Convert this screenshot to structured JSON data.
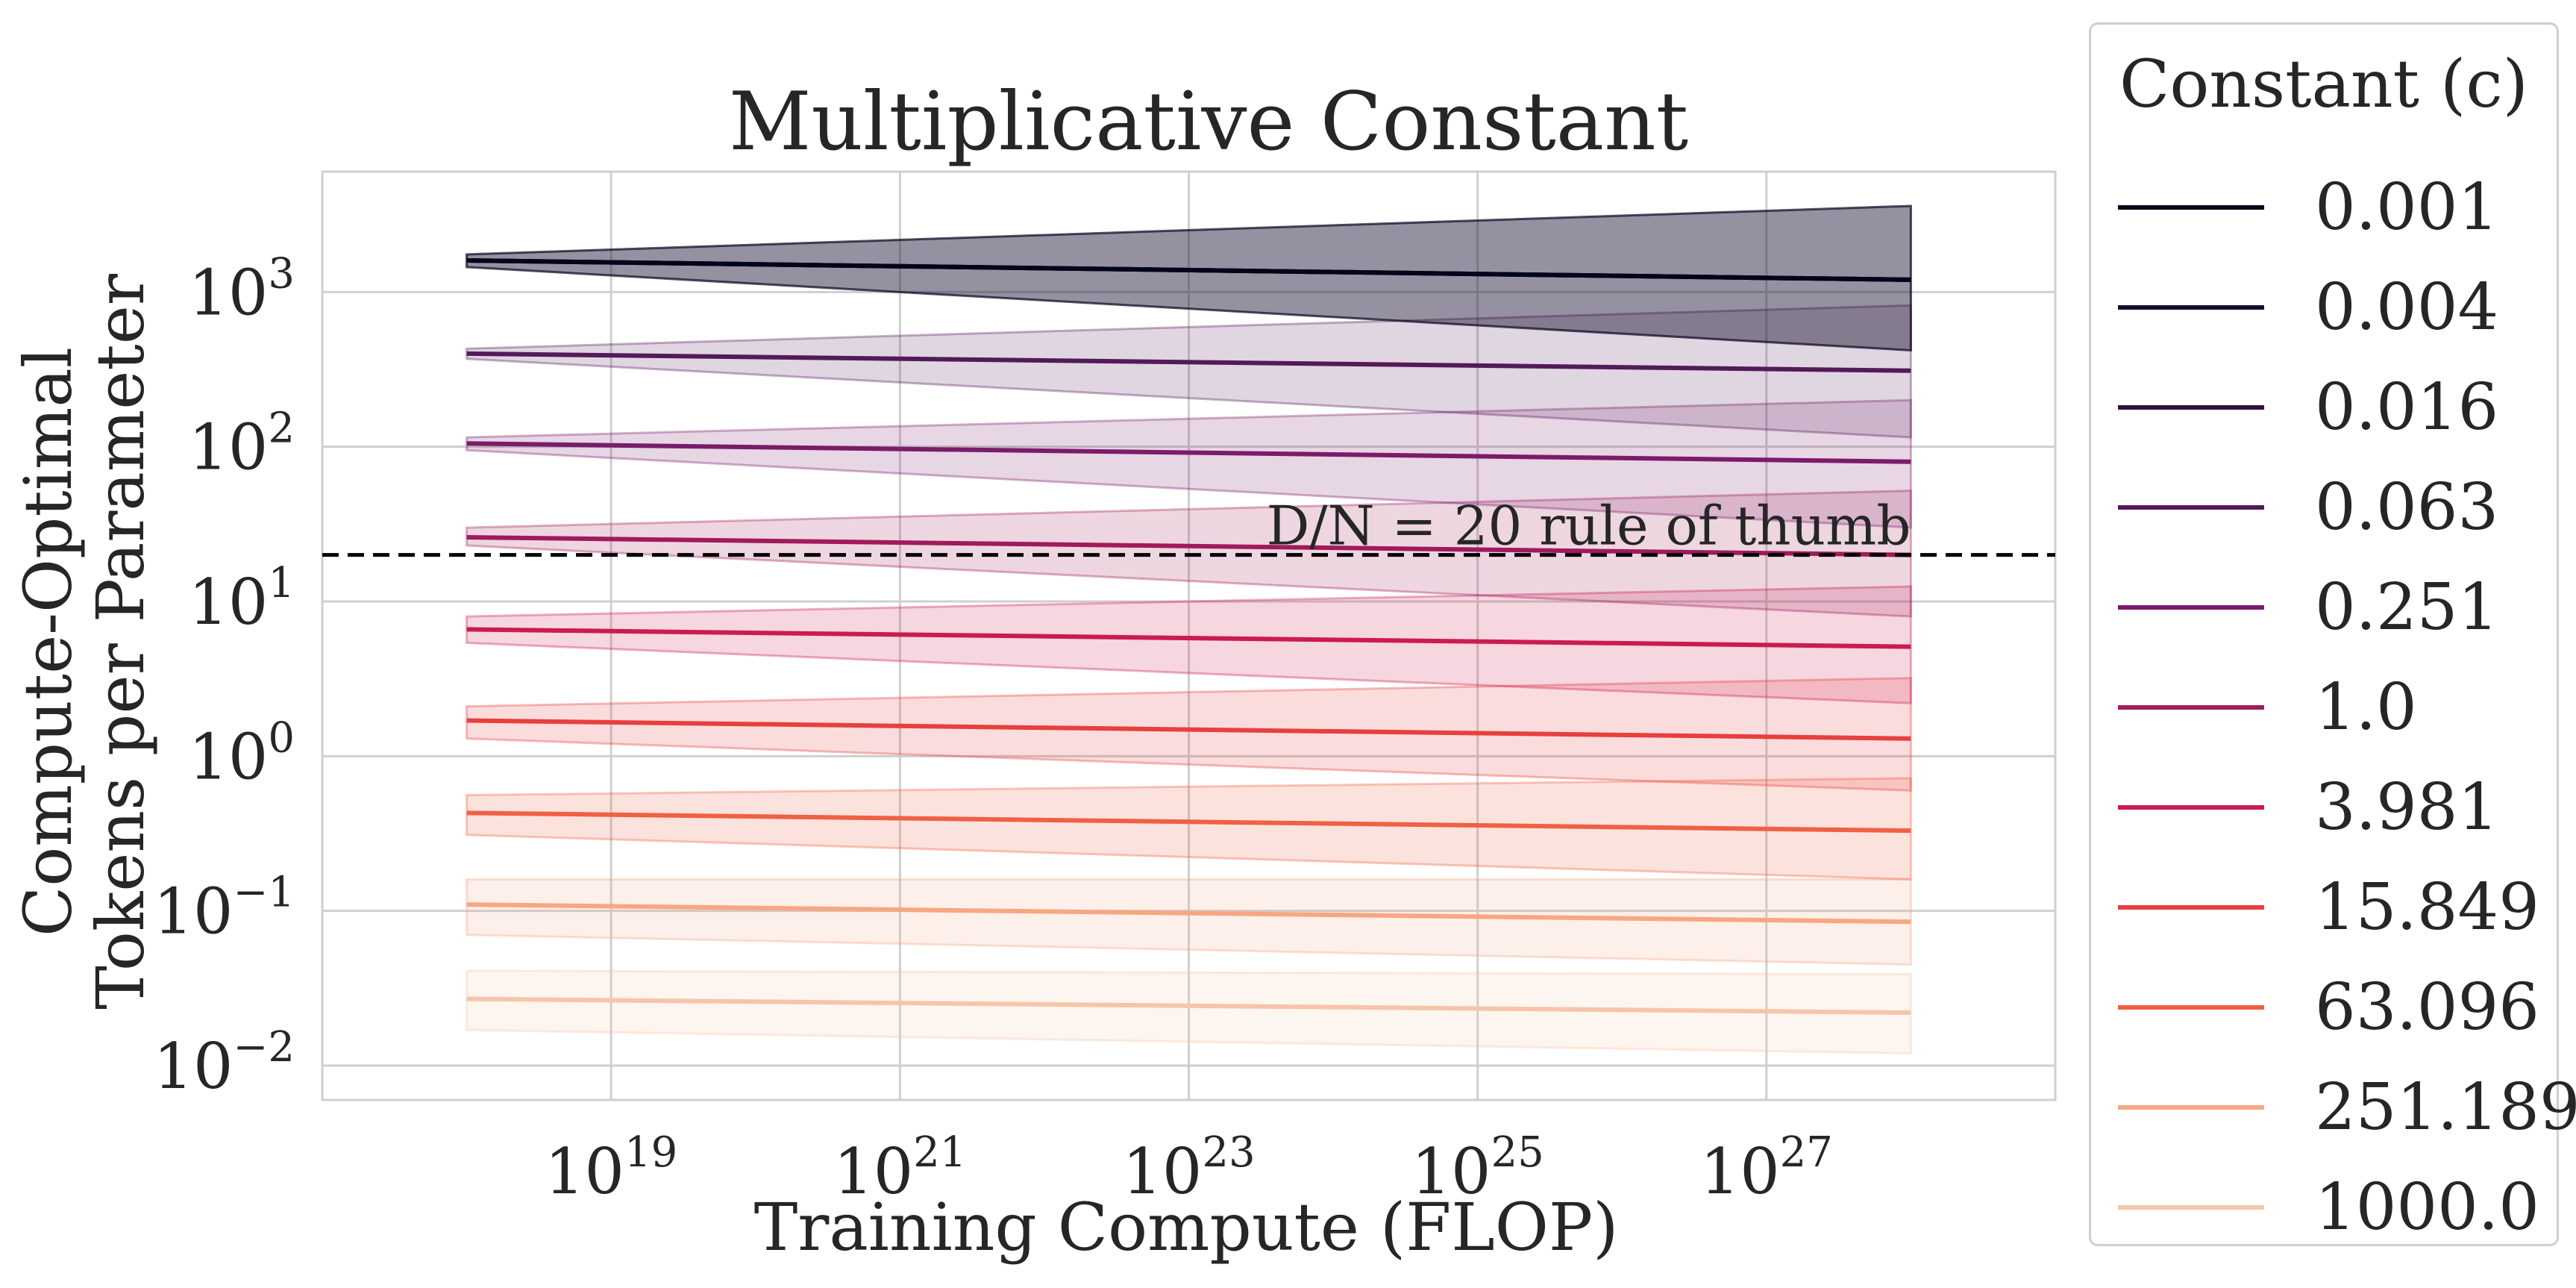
{
  "chart_data": {
    "type": "line",
    "title": "Multiplicative Constant",
    "xlabel": "Training Compute (FLOP)",
    "ylabel_lines": [
      "Compute-Optimal",
      "Tokens per Parameter"
    ],
    "x_scale": "log",
    "y_scale": "log",
    "xlim": [
      1e+17,
      1e+29
    ],
    "ylim": [
      0.006,
      6000
    ],
    "x_ticks": [
      {
        "value": 1e+19,
        "base": "10",
        "exp": "19"
      },
      {
        "value": 1e+21,
        "base": "10",
        "exp": "21"
      },
      {
        "value": 1e+23,
        "base": "10",
        "exp": "23"
      },
      {
        "value": 1e+25,
        "base": "10",
        "exp": "25"
      },
      {
        "value": 1e+27,
        "base": "10",
        "exp": "27"
      }
    ],
    "y_ticks": [
      {
        "value": 0.01,
        "base": "10",
        "exp": "−2"
      },
      {
        "value": 0.1,
        "base": "10",
        "exp": "−1"
      },
      {
        "value": 1,
        "base": "10",
        "exp": "0"
      },
      {
        "value": 10,
        "base": "10",
        "exp": "1"
      },
      {
        "value": 100,
        "base": "10",
        "exp": "2"
      },
      {
        "value": 1000,
        "base": "10",
        "exp": "3"
      }
    ],
    "grid": true,
    "x_range_plotted": [
      1e+18,
      1e+28
    ],
    "reference_line": {
      "y": 20,
      "style": "dashed",
      "color": "#000000",
      "label": "D/N = 20 rule of thumb"
    },
    "legend": {
      "title": "Constant (c)",
      "placement": "outside-right"
    },
    "series": [
      {
        "name": "0.001",
        "color": "#03051a",
        "y_start": 1600,
        "y_end": 1200,
        "band_start": [
          1450,
          1750
        ],
        "band_end": [
          420,
          3600
        ]
      },
      {
        "name": "0.004",
        "color": "#160e30",
        "y_start": 1600,
        "y_end": 1200,
        "band_start": [
          1450,
          1750
        ],
        "band_end": [
          420,
          3600
        ]
      },
      {
        "name": "0.016",
        "color": "#2d1343",
        "y_start": 1600,
        "y_end": 1200,
        "band_start": [
          1450,
          1750
        ],
        "band_end": [
          420,
          3600
        ]
      },
      {
        "name": "0.063",
        "color": "#531a5b",
        "y_start": 400,
        "y_end": 310,
        "band_start": [
          370,
          430
        ],
        "band_end": [
          115,
          820
        ]
      },
      {
        "name": "0.251",
        "color": "#7a1c6a",
        "y_start": 105,
        "y_end": 80,
        "band_start": [
          95,
          115
        ],
        "band_end": [
          30,
          200
        ]
      },
      {
        "name": "1.0",
        "color": "#a11a5b",
        "y_start": 26,
        "y_end": 20,
        "band_start": [
          23,
          30
        ],
        "band_end": [
          8,
          52
        ]
      },
      {
        "name": "3.981",
        "color": "#cb1b4f",
        "y_start": 6.6,
        "y_end": 5.1,
        "band_start": [
          5.4,
          8.0
        ],
        "band_end": [
          2.2,
          12.5
        ]
      },
      {
        "name": "15.849",
        "color": "#e83f3f",
        "y_start": 1.7,
        "y_end": 1.3,
        "band_start": [
          1.3,
          2.1
        ],
        "band_end": [
          0.6,
          3.2
        ]
      },
      {
        "name": "63.096",
        "color": "#f06043",
        "y_start": 0.43,
        "y_end": 0.33,
        "band_start": [
          0.31,
          0.56
        ],
        "band_end": [
          0.16,
          0.72
        ]
      },
      {
        "name": "251.189",
        "color": "#f6a783",
        "y_start": 0.11,
        "y_end": 0.085,
        "band_start": [
          0.07,
          0.16
        ],
        "band_end": [
          0.045,
          0.16
        ]
      },
      {
        "name": "1000.0",
        "color": "#f6c5a8",
        "y_start": 0.027,
        "y_end": 0.022,
        "band_start": [
          0.017,
          0.041
        ],
        "band_end": [
          0.012,
          0.039
        ]
      }
    ]
  }
}
